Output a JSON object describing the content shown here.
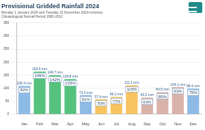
{
  "chart_data": {
    "type": "bar",
    "title": "Provisional Gridded Rainfall 2024",
    "subtitle": [
      "Monday 1 January 2024 and Tuesday 31 December 2024 inclusive",
      "Climatological Normal Period 1981-2010"
    ],
    "categories": [
      "Jan",
      "Feb",
      "Mar",
      "Apr",
      "May",
      "Jun",
      "Jul",
      "Aug",
      "Sep",
      "Oct",
      "Nov",
      "Dec"
    ],
    "values": [
      108.3,
      163.6,
      149.7,
      134.8,
      73.0,
      57.4,
      66.2,
      111.1,
      63.2,
      84.5,
      104.1,
      98.4
    ],
    "value_labels": [
      "108.3 mm",
      "163.6 mm",
      "149.7 mm",
      "134.8 mm",
      "73.0 mm",
      "57.4 mm",
      "66.2 mm",
      "111.1 mm",
      "63.2 mm",
      "84.5 mm",
      "104.1 mm",
      "98.4 mm"
    ],
    "percent_labels": [
      "82%",
      "149%",
      "142%",
      "133%",
      "91%",
      "70%",
      "77%",
      "115%",
      "63%",
      "80%",
      "93%",
      "79%"
    ],
    "colors": [
      "#8dbbe6",
      "#55c27e",
      "#55c27e",
      "#55c27e",
      "#8dbbe6",
      "#f7c35f",
      "#f7c35f",
      "#f7c35f",
      "#d9b2aa",
      "#d9b2aa",
      "#d9b2aa",
      "#8dbbe6"
    ],
    "ylim": [
      0,
      350
    ],
    "yticks": [
      0,
      50,
      100,
      150,
      200,
      250,
      300,
      350
    ],
    "grid": true,
    "data_labels": true
  }
}
